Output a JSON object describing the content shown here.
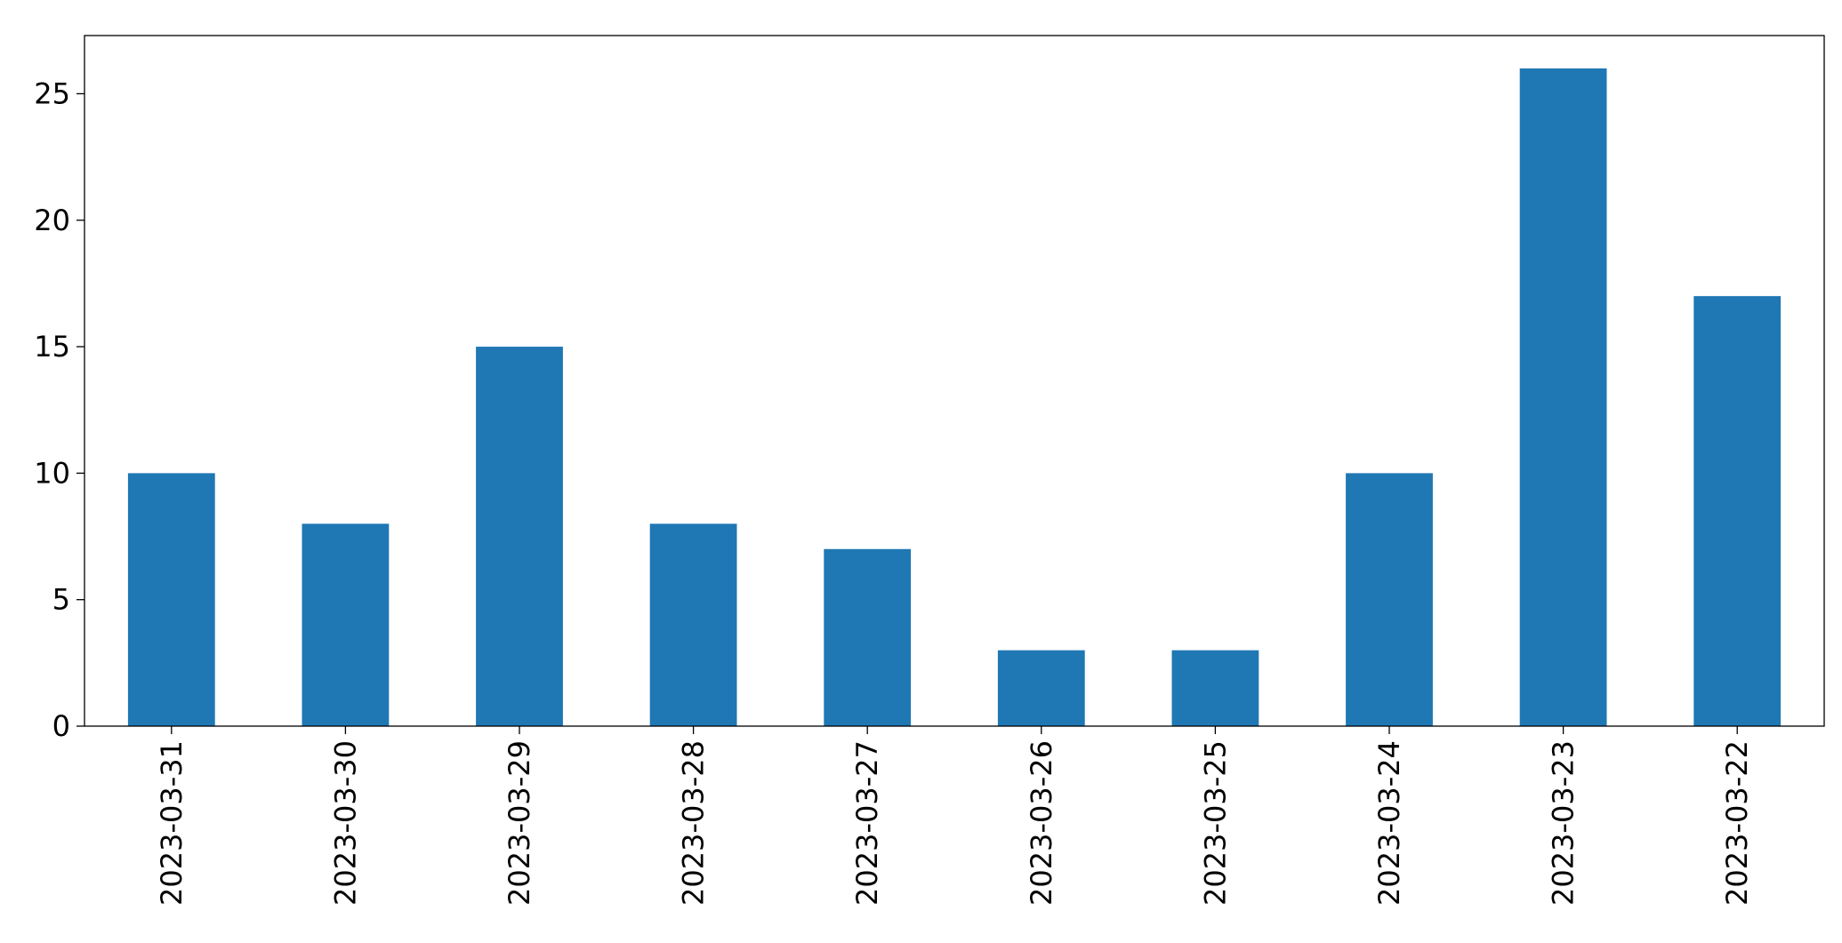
{
  "chart_data": {
    "type": "bar",
    "categories": [
      "2023-03-31",
      "2023-03-30",
      "2023-03-29",
      "2023-03-28",
      "2023-03-27",
      "2023-03-26",
      "2023-03-25",
      "2023-03-24",
      "2023-03-23",
      "2023-03-22"
    ],
    "values": [
      10,
      8,
      15,
      8,
      7,
      3,
      3,
      10,
      26,
      17
    ],
    "color": "#1f77b4",
    "ylim": [
      0,
      27.3
    ],
    "yticks": [
      0,
      5,
      10,
      15,
      20,
      25
    ],
    "grid": false
  }
}
